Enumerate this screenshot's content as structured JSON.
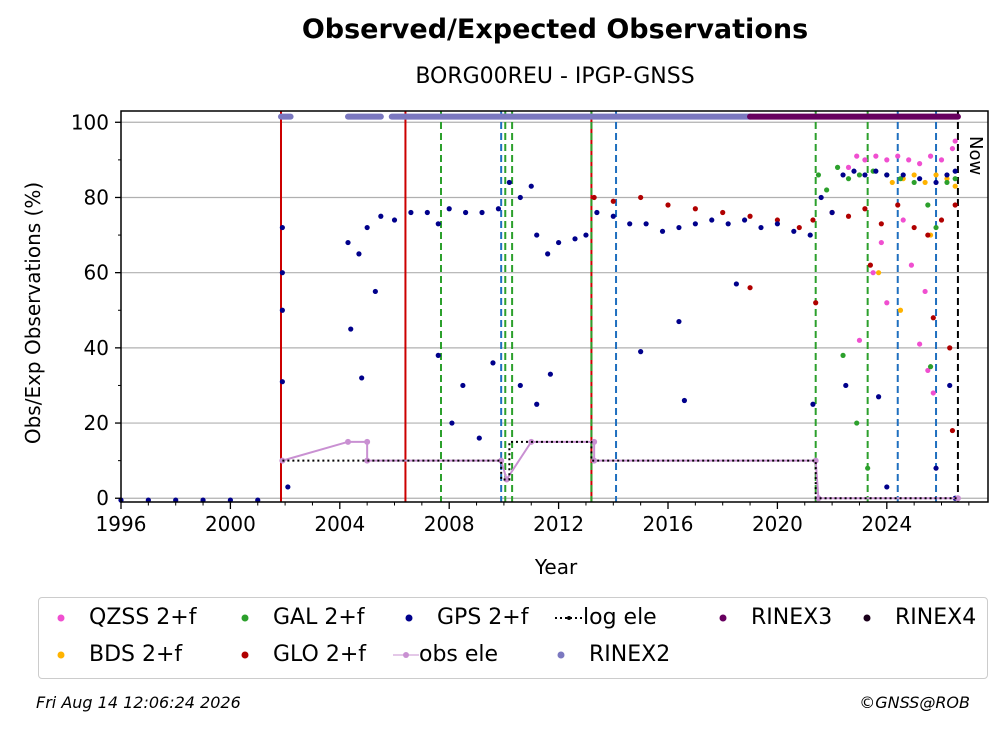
{
  "chart_data": {
    "type": "scatter",
    "title": "Observed/Expected Observations",
    "subtitle": "BORG00REU - IPGP-GNSS",
    "xlabel": "Year",
    "ylabel": "Obs/Exp Observations (%)",
    "xlim": [
      1996,
      2027.7
    ],
    "ylim": [
      -1,
      103
    ],
    "xticks": [
      "1996",
      "2000",
      "2004",
      "2008",
      "2012",
      "2016",
      "2020",
      "2024"
    ],
    "yticks": [
      "0",
      "20",
      "40",
      "60",
      "80",
      "100"
    ],
    "grid": "horizontal",
    "now_label": "Now",
    "now_year": 2026.6,
    "vlines": [
      {
        "x": 2001.85,
        "color": "#2ca02c"
      },
      {
        "x": 2001.85,
        "color": "#cc0000"
      },
      {
        "x": 2006.4,
        "color": "#cc0000"
      },
      {
        "x": 2007.7,
        "color": "#2ca02c"
      },
      {
        "x": 2009.9,
        "color": "#1f6fbf"
      },
      {
        "x": 2010.05,
        "color": "#2ca02c"
      },
      {
        "x": 2010.3,
        "color": "#2ca02c"
      },
      {
        "x": 2013.2,
        "color": "#cc0000"
      },
      {
        "x": 2013.2,
        "color": "#2ca02c"
      },
      {
        "x": 2014.1,
        "color": "#1f6fbf"
      },
      {
        "x": 2021.4,
        "color": "#2ca02c"
      },
      {
        "x": 2023.3,
        "color": "#2ca02c"
      },
      {
        "x": 2024.4,
        "color": "#1f6fbf"
      },
      {
        "x": 2025.8,
        "color": "#1f6fbf"
      },
      {
        "x": 2026.6,
        "color": "#000000"
      }
    ],
    "series": [
      {
        "name": "QZSS 2+f",
        "color": "#f04fd0",
        "points": [
          [
            2022.6,
            88
          ],
          [
            2022.9,
            91
          ],
          [
            2023.2,
            90
          ],
          [
            2023.6,
            91
          ],
          [
            2024.0,
            90
          ],
          [
            2024.4,
            91
          ],
          [
            2024.8,
            90
          ],
          [
            2025.2,
            89
          ],
          [
            2025.6,
            91
          ],
          [
            2026.0,
            90
          ],
          [
            2026.4,
            93
          ],
          [
            2026.5,
            95
          ],
          [
            2023.0,
            42
          ],
          [
            2023.5,
            60
          ],
          [
            2024.0,
            52
          ],
          [
            2024.6,
            74
          ],
          [
            2025.2,
            41
          ],
          [
            2025.5,
            34
          ],
          [
            2025.7,
            28
          ],
          [
            2025.4,
            55
          ],
          [
            2023.8,
            68
          ],
          [
            2024.9,
            62
          ]
        ]
      },
      {
        "name": "BDS 2+f",
        "color": "#ffb300",
        "points": [
          [
            2024.2,
            84
          ],
          [
            2024.6,
            85
          ],
          [
            2025.0,
            86
          ],
          [
            2025.4,
            84
          ],
          [
            2025.8,
            86
          ],
          [
            2026.2,
            85
          ],
          [
            2026.5,
            83
          ],
          [
            2023.7,
            60
          ],
          [
            2024.5,
            50
          ],
          [
            2025.6,
            70
          ]
        ]
      },
      {
        "name": "GLO 2+f",
        "color": "#b00000",
        "points": [
          [
            2013.3,
            80
          ],
          [
            2014,
            79
          ],
          [
            2015,
            80
          ],
          [
            2016,
            78
          ],
          [
            2017,
            77
          ],
          [
            2018,
            76
          ],
          [
            2019,
            75
          ],
          [
            2020,
            74
          ],
          [
            2020.8,
            72
          ],
          [
            2021.3,
            74
          ],
          [
            2022,
            76
          ],
          [
            2022.6,
            75
          ],
          [
            2023.2,
            77
          ],
          [
            2023.8,
            73
          ],
          [
            2024.4,
            78
          ],
          [
            2025,
            72
          ],
          [
            2025.5,
            70
          ],
          [
            2026.0,
            74
          ],
          [
            2026.5,
            78
          ],
          [
            2019.0,
            56
          ],
          [
            2021.4,
            52
          ],
          [
            2023.4,
            62
          ],
          [
            2025.7,
            48
          ],
          [
            2026.3,
            40
          ],
          [
            2026.4,
            18
          ]
        ]
      },
      {
        "name": "GAL 2+f",
        "color": "#2ca02c",
        "points": [
          [
            2021.5,
            86
          ],
          [
            2021.8,
            82
          ],
          [
            2022.2,
            88
          ],
          [
            2022.6,
            85
          ],
          [
            2023.0,
            86
          ],
          [
            2023.5,
            87
          ],
          [
            2024.0,
            86
          ],
          [
            2024.5,
            85
          ],
          [
            2025.0,
            84
          ],
          [
            2025.5,
            78
          ],
          [
            2025.8,
            72
          ],
          [
            2026.2,
            84
          ],
          [
            2026.5,
            85
          ],
          [
            2022.4,
            38
          ],
          [
            2022.9,
            20
          ],
          [
            2023.3,
            8
          ],
          [
            2025.6,
            35
          ]
        ]
      },
      {
        "name": "GPS 2+f",
        "color": "#00008b",
        "points": [
          [
            1996,
            -0.5
          ],
          [
            1997,
            -0.5
          ],
          [
            1998,
            -0.5
          ],
          [
            1999,
            -0.5
          ],
          [
            2000,
            -0.5
          ],
          [
            2001,
            -0.5
          ],
          [
            2001.9,
            72
          ],
          [
            2001.9,
            60
          ],
          [
            2001.9,
            50
          ],
          [
            2001.9,
            31
          ],
          [
            2002.1,
            3
          ],
          [
            2004.3,
            68
          ],
          [
            2004.7,
            65
          ],
          [
            2005.0,
            72
          ],
          [
            2005.5,
            75
          ],
          [
            2006.0,
            74
          ],
          [
            2006.6,
            76
          ],
          [
            2007.2,
            76
          ],
          [
            2007.6,
            73
          ],
          [
            2008.0,
            77
          ],
          [
            2008.6,
            76
          ],
          [
            2009.2,
            76
          ],
          [
            2009.8,
            77
          ],
          [
            2010.2,
            84
          ],
          [
            2010.6,
            80
          ],
          [
            2011.0,
            83
          ],
          [
            2011.2,
            70
          ],
          [
            2011.6,
            65
          ],
          [
            2012.0,
            68
          ],
          [
            2012.6,
            69
          ],
          [
            2013.0,
            70
          ],
          [
            2013.4,
            76
          ],
          [
            2014.0,
            75
          ],
          [
            2014.6,
            73
          ],
          [
            2015.2,
            73
          ],
          [
            2015.8,
            71
          ],
          [
            2016.4,
            72
          ],
          [
            2017.0,
            73
          ],
          [
            2017.6,
            74
          ],
          [
            2018.2,
            73
          ],
          [
            2018.8,
            74
          ],
          [
            2019.4,
            72
          ],
          [
            2020.0,
            73
          ],
          [
            2020.6,
            71
          ],
          [
            2021.2,
            70
          ],
          [
            2021.6,
            80
          ],
          [
            2022.0,
            76
          ],
          [
            2022.4,
            86
          ],
          [
            2022.8,
            87
          ],
          [
            2023.2,
            86
          ],
          [
            2023.6,
            87
          ],
          [
            2024.0,
            86
          ],
          [
            2024.6,
            86
          ],
          [
            2025.2,
            85
          ],
          [
            2025.8,
            84
          ],
          [
            2026.2,
            86
          ],
          [
            2026.5,
            87
          ],
          [
            2004.4,
            45
          ],
          [
            2004.8,
            32
          ],
          [
            2005.3,
            55
          ],
          [
            2007.6,
            38
          ],
          [
            2008.1,
            20
          ],
          [
            2008.5,
            30
          ],
          [
            2009.1,
            16
          ],
          [
            2009.6,
            36
          ],
          [
            2010.6,
            30
          ],
          [
            2011.2,
            25
          ],
          [
            2011.7,
            33
          ],
          [
            2015.0,
            39
          ],
          [
            2016.4,
            47
          ],
          [
            2016.6,
            26
          ],
          [
            2018.5,
            57
          ],
          [
            2021.3,
            25
          ],
          [
            2022.5,
            30
          ],
          [
            2023.7,
            27
          ],
          [
            2024.0,
            3
          ],
          [
            2025.8,
            8
          ],
          [
            2026.3,
            30
          ],
          [
            2026.5,
            0
          ]
        ]
      },
      {
        "name": "obs ele",
        "color": "#c990d2",
        "points": [
          [
            2001.9,
            10
          ],
          [
            2004.3,
            15
          ],
          [
            2005.0,
            15
          ],
          [
            2005.0,
            10
          ],
          [
            2009.9,
            10
          ],
          [
            2010.1,
            5
          ],
          [
            2011.0,
            15
          ],
          [
            2013.3,
            15
          ],
          [
            2013.3,
            10
          ],
          [
            2021.4,
            10
          ],
          [
            2021.5,
            0
          ],
          [
            2026.6,
            0
          ]
        ]
      },
      {
        "name": "log ele",
        "color": "#000000",
        "points": [
          [
            2001.9,
            10
          ],
          [
            2009.9,
            10
          ],
          [
            2009.9,
            5
          ],
          [
            2010.2,
            5
          ],
          [
            2010.2,
            15
          ],
          [
            2013.2,
            15
          ],
          [
            2013.2,
            10
          ],
          [
            2021.4,
            10
          ],
          [
            2021.4,
            0
          ],
          [
            2026.6,
            0
          ]
        ]
      },
      {
        "name": "RINEX2",
        "color": "#7b78c0",
        "points": [
          [
            2001.85,
            101.5
          ],
          [
            2002.2,
            101.5
          ],
          [
            2004.3,
            101.5
          ],
          [
            2005.5,
            101.5
          ],
          [
            2005.9,
            101.5
          ],
          [
            2019.0,
            101.5
          ]
        ]
      },
      {
        "name": "RINEX3",
        "color": "#67005f",
        "points": [
          [
            2019.0,
            101.5
          ],
          [
            2026.6,
            101.5
          ]
        ]
      },
      {
        "name": "RINEX4",
        "color": "#1a001a",
        "points": []
      }
    ]
  },
  "legend": {
    "items": [
      {
        "label": "QZSS 2+f",
        "color": "#f04fd0",
        "kind": "dot"
      },
      {
        "label": "GAL 2+f",
        "color": "#2ca02c",
        "kind": "dot"
      },
      {
        "label": "GPS 2+f",
        "color": "#00008b",
        "kind": "dot"
      },
      {
        "label": "log ele",
        "color": "#000000",
        "kind": "dotted"
      },
      {
        "label": "RINEX3",
        "color": "#67005f",
        "kind": "dot"
      },
      {
        "label": "RINEX4",
        "color": "#1a001a",
        "kind": "dot"
      },
      {
        "label": "BDS 2+f",
        "color": "#ffb300",
        "kind": "dot"
      },
      {
        "label": "GLO 2+f",
        "color": "#b00000",
        "kind": "dot"
      },
      {
        "label": "obs ele",
        "color": "#c990d2",
        "kind": "line"
      },
      {
        "label": "RINEX2",
        "color": "#7b78c0",
        "kind": "dot"
      }
    ]
  },
  "footer": {
    "timestamp": "Fri Aug 14 12:06:24 2026",
    "credit": "©GNSS@ROB"
  }
}
